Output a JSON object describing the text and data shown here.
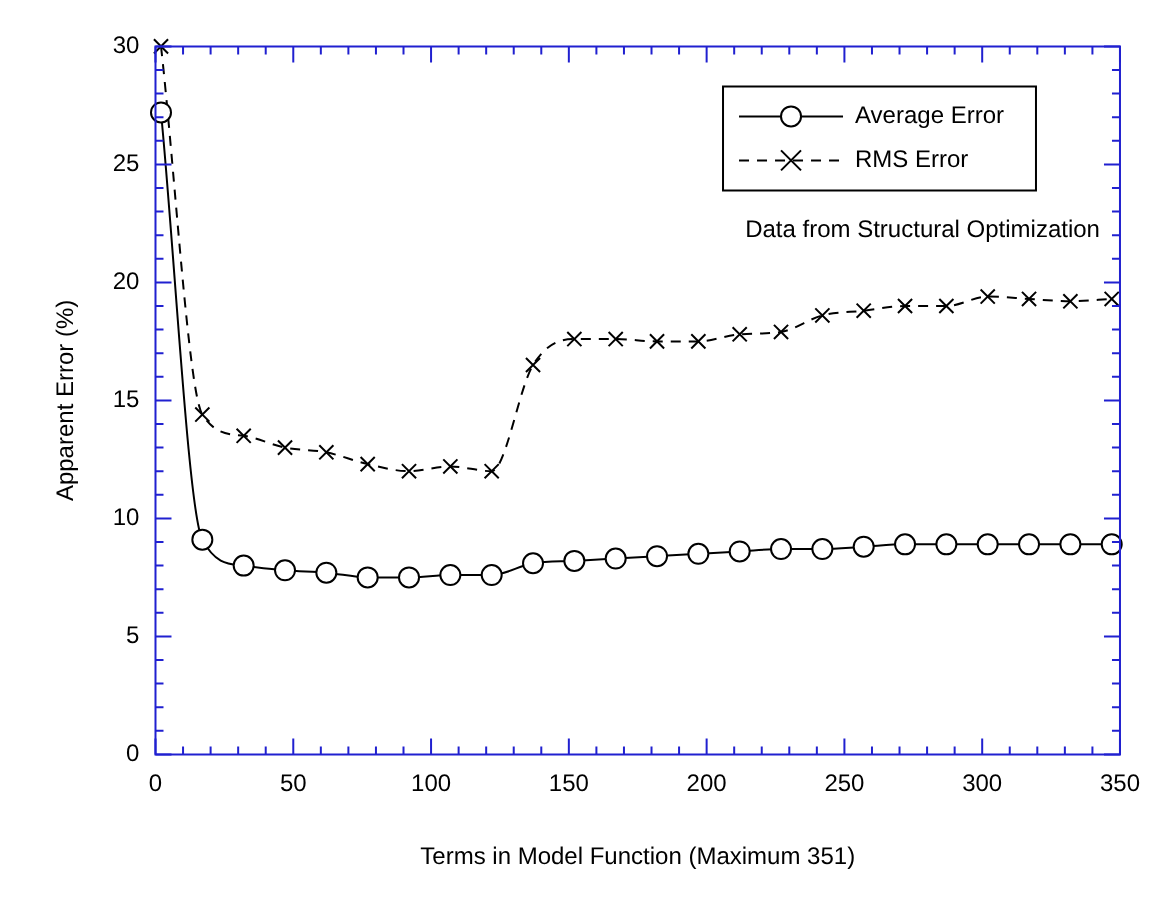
{
  "chart_data": {
    "type": "line",
    "xlabel": "Terms in Model Function (Maximum 351)",
    "ylabel": "Apparent Error (%)",
    "x": [
      2,
      17,
      32,
      47,
      62,
      77,
      92,
      107,
      122,
      137,
      152,
      167,
      182,
      197,
      212,
      227,
      242,
      257,
      272,
      287,
      302,
      317,
      332,
      347
    ],
    "series": [
      {
        "name": "Average Error",
        "color": "#000000",
        "marker": "circle",
        "line_style": "solid",
        "values": [
          27.2,
          9.1,
          8.0,
          7.8,
          7.7,
          7.5,
          7.5,
          7.6,
          7.6,
          8.1,
          8.2,
          8.3,
          8.4,
          8.5,
          8.6,
          8.7,
          8.7,
          8.8,
          8.9,
          8.9,
          8.9,
          8.9,
          8.9,
          8.9
        ]
      },
      {
        "name": "RMS Error",
        "color": "#000000",
        "marker": "cross",
        "line_style": "dashed",
        "values": [
          30,
          14.4,
          13.5,
          13.0,
          12.8,
          12.3,
          12.0,
          12.2,
          12.0,
          16.5,
          17.6,
          17.6,
          17.5,
          17.5,
          17.8,
          17.9,
          18.6,
          18.8,
          19.0,
          19.0,
          19.4,
          19.3,
          19.2,
          19.3
        ]
      }
    ],
    "xlim": [
      0,
      350
    ],
    "xticks": [
      0,
      50,
      100,
      150,
      200,
      250,
      300,
      350
    ],
    "ylim": [
      0,
      30
    ],
    "yticks": [
      0,
      5,
      10,
      15,
      20,
      25,
      30
    ],
    "grid": false,
    "legend": "top right",
    "annotations": [
      "Data from Structural Optimization"
    ]
  }
}
